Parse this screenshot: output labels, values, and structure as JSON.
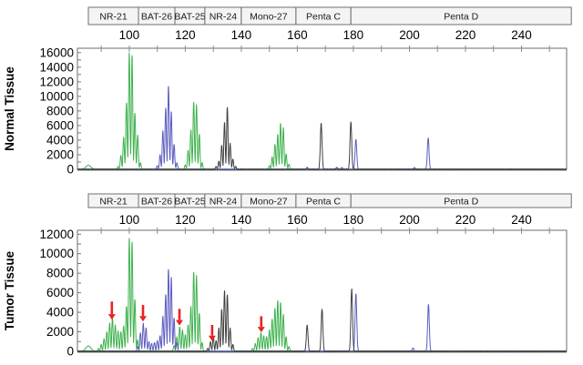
{
  "figure": {
    "description_labels": {
      "normal_panel": "Normal Tissue",
      "tumor_panel": "Tumor Tissue"
    }
  },
  "chart_data": [
    {
      "id": "normal",
      "type": "line",
      "panel_label": "Normal Tissue",
      "marker_boxes": [
        {
          "label": "NR-21",
          "from": 85.4,
          "to": 103.3
        },
        {
          "label": "BAT-26",
          "from": 103.3,
          "to": 116.3
        },
        {
          "label": "BAT-25",
          "from": 116.3,
          "to": 127.0
        },
        {
          "label": "NR-24",
          "from": 127.0,
          "to": 140.0
        },
        {
          "label": "Mono-27",
          "from": 140.0,
          "to": 159.5
        },
        {
          "label": "Penta C",
          "from": 159.5,
          "to": 179.1
        },
        {
          "label": "Penta D",
          "from": 179.1,
          "to": 257.8
        }
      ],
      "x_axis": {
        "min": 81.5,
        "max": 256.1,
        "labeled_ticks": [
          100,
          120,
          140,
          160,
          180,
          200,
          220,
          240
        ],
        "minor_tick_step": 10,
        "minor_from": 90,
        "minor_to": 250
      },
      "y_axis": {
        "min": 0,
        "max": 16600,
        "label_step": 2000,
        "label_max": 16000,
        "minor_step": 1000
      },
      "series": [
        {
          "name": "green-channel",
          "color": "#3eb14d",
          "sigma": 0.24,
          "peaks": [
            [
              85.4,
              550,
              0.9
            ],
            [
              96,
              400
            ],
            [
              97,
              1900
            ],
            [
              98,
              4400
            ],
            [
              99,
              9100
            ],
            [
              100,
              16000
            ],
            [
              101,
              15600
            ],
            [
              102,
              7700
            ],
            [
              103,
              4700
            ],
            [
              104,
              900
            ],
            [
              120,
              600
            ],
            [
              121,
              2600
            ],
            [
              122,
              5400
            ],
            [
              123,
              9200
            ],
            [
              124,
              8900
            ],
            [
              125,
              4800
            ],
            [
              126,
              900
            ],
            [
              150,
              500
            ],
            [
              151,
              1700
            ],
            [
              152,
              3400
            ],
            [
              153,
              4800
            ],
            [
              154,
              6300
            ],
            [
              155,
              5700
            ],
            [
              156,
              2100
            ],
            [
              157,
              700
            ]
          ]
        },
        {
          "name": "blue-channel",
          "color": "#5c5cc0",
          "sigma": 0.24,
          "peaks": [
            [
              110,
              500
            ],
            [
              111,
              2000
            ],
            [
              112,
              5300
            ],
            [
              113,
              8400
            ],
            [
              114,
              11400
            ],
            [
              115,
              7900
            ],
            [
              116,
              3400
            ],
            [
              117,
              900
            ],
            [
              175.9,
              250,
              0.3
            ],
            [
              180.9,
              4100,
              0.3
            ],
            [
              201.8,
              250,
              0.3
            ],
            [
              206.7,
              4300,
              0.3
            ]
          ]
        },
        {
          "name": "black-channel",
          "color": "#3f3f3f",
          "sigma": 0.24,
          "peaks": [
            [
              131,
              400
            ],
            [
              132,
              1100
            ],
            [
              133,
              3300
            ],
            [
              134,
              6400
            ],
            [
              135,
              8500
            ],
            [
              136,
              3600
            ],
            [
              137,
              1400
            ],
            [
              138,
              400
            ],
            [
              163.5,
              250,
              0.3
            ],
            [
              168.5,
              6300,
              0.3
            ],
            [
              174.1,
              250,
              0.3
            ],
            [
              179.1,
              6500,
              0.3
            ]
          ]
        }
      ],
      "arrows": [],
      "arrow_color": "#e8231f"
    },
    {
      "id": "tumor",
      "type": "line",
      "panel_label": "Tumor Tissue",
      "marker_boxes": [
        {
          "label": "NR-21",
          "from": 85.4,
          "to": 103.3
        },
        {
          "label": "BAT-26",
          "from": 103.3,
          "to": 116.3
        },
        {
          "label": "BAT-25",
          "from": 116.3,
          "to": 127.0
        },
        {
          "label": "NR-24",
          "from": 127.0,
          "to": 140.0
        },
        {
          "label": "Mono-27",
          "from": 140.0,
          "to": 159.5
        },
        {
          "label": "Penta C",
          "from": 159.5,
          "to": 179.1
        },
        {
          "label": "Penta D",
          "from": 179.1,
          "to": 257.8
        }
      ],
      "x_axis": {
        "min": 81.5,
        "max": 256.1,
        "labeled_ticks": [
          100,
          120,
          140,
          160,
          180,
          200,
          220,
          240
        ],
        "minor_tick_step": 10,
        "minor_from": 90,
        "minor_to": 250
      },
      "y_axis": {
        "min": 0,
        "max": 12400,
        "label_step": 2000,
        "label_max": 12000,
        "minor_step": 1000
      },
      "series": [
        {
          "name": "green-channel",
          "color": "#3eb14d",
          "sigma": 0.24,
          "peaks": [
            [
              85.4,
              550,
              0.9
            ],
            [
              89,
              300
            ],
            [
              90,
              700
            ],
            [
              91,
              1300
            ],
            [
              92,
              2000
            ],
            [
              93,
              2900
            ],
            [
              94,
              3400
            ],
            [
              95,
              2700
            ],
            [
              96,
              2100
            ],
            [
              97,
              2000
            ],
            [
              98,
              2600
            ],
            [
              99,
              4600
            ],
            [
              100,
              11600
            ],
            [
              101,
              11200
            ],
            [
              102,
              5300
            ],
            [
              103,
              1200
            ],
            [
              116,
              600
            ],
            [
              117,
              1500
            ],
            [
              118,
              2500
            ],
            [
              119,
              2200
            ],
            [
              120,
              1700
            ],
            [
              121,
              2700
            ],
            [
              122,
              4600
            ],
            [
              123,
              8100
            ],
            [
              124,
              7800
            ],
            [
              125,
              3900
            ],
            [
              126,
              900
            ],
            [
              144,
              300
            ],
            [
              145,
              800
            ],
            [
              146,
              1400
            ],
            [
              147,
              1900
            ],
            [
              148,
              1600
            ],
            [
              149,
              1500
            ],
            [
              150,
              2200
            ],
            [
              151,
              3300
            ],
            [
              152,
              4400
            ],
            [
              153,
              5200
            ],
            [
              154,
              5000
            ],
            [
              155,
              3800
            ],
            [
              156,
              1500
            ],
            [
              157,
              500
            ]
          ]
        },
        {
          "name": "blue-channel",
          "color": "#5c5cc0",
          "sigma": 0.24,
          "peaks": [
            [
              103,
              500
            ],
            [
              104,
              1900
            ],
            [
              105,
              2900
            ],
            [
              106,
              2400
            ],
            [
              107,
              1000
            ],
            [
              108,
              800
            ],
            [
              109,
              900
            ],
            [
              110,
              1100
            ],
            [
              111,
              1600
            ],
            [
              112,
              3600
            ],
            [
              113,
              5800
            ],
            [
              114,
              8400
            ],
            [
              115,
              7600
            ],
            [
              116,
              3400
            ],
            [
              117,
              900
            ],
            [
              180.9,
              5900,
              0.3
            ],
            [
              201.3,
              350,
              0.3
            ],
            [
              206.8,
              4800,
              0.3
            ]
          ]
        },
        {
          "name": "black-channel",
          "color": "#3f3f3f",
          "sigma": 0.24,
          "peaks": [
            [
              128,
              300
            ],
            [
              129,
              1000
            ],
            [
              130,
              1500
            ],
            [
              131,
              1100
            ],
            [
              132,
              2400
            ],
            [
              133,
              4300
            ],
            [
              134,
              6200
            ],
            [
              135,
              5800
            ],
            [
              136,
              2400
            ],
            [
              137,
              700
            ],
            [
              163.5,
              2700,
              0.3
            ],
            [
              168.8,
              4300,
              0.3
            ],
            [
              179.4,
              6400,
              0.3
            ]
          ]
        }
      ],
      "arrows": [
        {
          "x": 93.8,
          "from": 5100,
          "to": 3250
        },
        {
          "x": 104.9,
          "from": 4750,
          "to": 3050
        },
        {
          "x": 117.9,
          "from": 4350,
          "to": 2650
        },
        {
          "x": 129.6,
          "from": 2700,
          "to": 1050
        },
        {
          "x": 147.1,
          "from": 3600,
          "to": 1950
        }
      ],
      "arrow_color": "#e8231f"
    }
  ]
}
